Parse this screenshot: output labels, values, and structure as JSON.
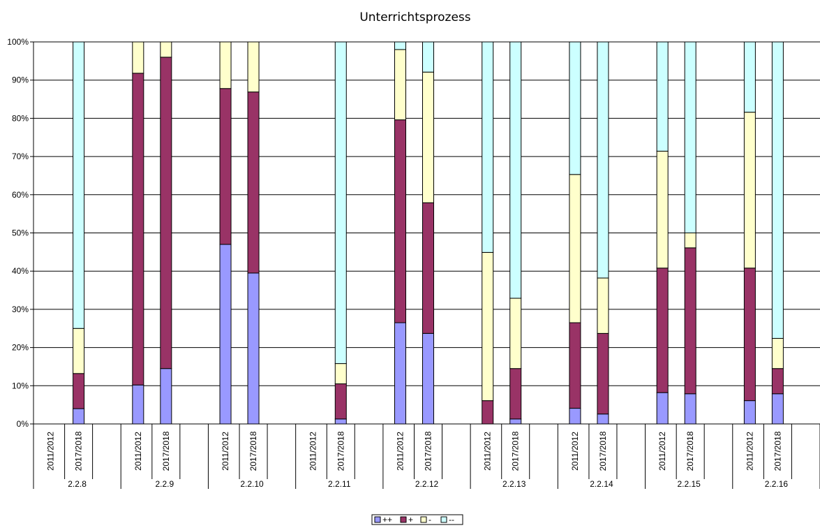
{
  "chart_data": {
    "type": "bar",
    "stacked": true,
    "percent_stacked": true,
    "title": "Unterrichtsprozess",
    "ylim": [
      0,
      100
    ],
    "ytick_labels": [
      "0%",
      "10%",
      "20%",
      "30%",
      "40%",
      "50%",
      "60%",
      "70%",
      "80%",
      "90%",
      "100%"
    ],
    "grid": true,
    "legend_position": "bottom",
    "groups": [
      {
        "label": "2.2.8",
        "bars": [
          {
            "label": "2011/2012",
            "values": [
              0,
              0,
              0,
              0
            ]
          },
          {
            "label": "2017/2018",
            "values": [
              4,
              9.2,
              11.8,
              75
            ]
          }
        ]
      },
      {
        "label": "2.2.9",
        "bars": [
          {
            "label": "2011/2012",
            "values": [
              10.2,
              81.6,
              8.2,
              0
            ]
          },
          {
            "label": "2017/2018",
            "values": [
              14.5,
              81.5,
              4,
              0
            ]
          }
        ]
      },
      {
        "label": "2.2.10",
        "bars": [
          {
            "label": "2011/2012",
            "values": [
              47,
              40.8,
              12.2,
              0
            ]
          },
          {
            "label": "2017/2018",
            "values": [
              39.5,
              47.4,
              13.1,
              0
            ]
          }
        ]
      },
      {
        "label": "2.2.11",
        "bars": [
          {
            "label": "2011/2012",
            "values": [
              0,
              0,
              0,
              0
            ]
          },
          {
            "label": "2017/2018",
            "values": [
              1.3,
              9.2,
              5.3,
              84.2
            ]
          }
        ]
      },
      {
        "label": "2.2.12",
        "bars": [
          {
            "label": "2011/2012",
            "values": [
              26.5,
              53.1,
              18.4,
              2
            ]
          },
          {
            "label": "2017/2018",
            "values": [
              23.7,
              34.2,
              34.2,
              7.9
            ]
          }
        ]
      },
      {
        "label": "2.2.13",
        "bars": [
          {
            "label": "2011/2012",
            "values": [
              0,
              6.1,
              38.8,
              55.1
            ]
          },
          {
            "label": "2017/2018",
            "values": [
              1.3,
              13.2,
              18.4,
              67.1
            ]
          }
        ]
      },
      {
        "label": "2.2.14",
        "bars": [
          {
            "label": "2011/2012",
            "values": [
              4.1,
              22.4,
              38.8,
              34.7
            ]
          },
          {
            "label": "2017/2018",
            "values": [
              2.6,
              21.1,
              14.5,
              61.8
            ]
          }
        ]
      },
      {
        "label": "2.2.15",
        "bars": [
          {
            "label": "2011/2012",
            "values": [
              8.2,
              32.6,
              30.6,
              28.6
            ]
          },
          {
            "label": "2017/2018",
            "values": [
              7.9,
              38.2,
              3.9,
              50
            ]
          }
        ]
      },
      {
        "label": "2.2.16",
        "bars": [
          {
            "label": "2011/2012",
            "values": [
              6.1,
              34.7,
              40.8,
              18.4
            ]
          },
          {
            "label": "2017/2018",
            "values": [
              7.9,
              6.6,
              7.9,
              77.6
            ]
          }
        ]
      }
    ],
    "series": [
      {
        "name": "++",
        "color": "#9999ff"
      },
      {
        "name": "+",
        "color": "#993366"
      },
      {
        "name": "-",
        "color": "#ffffcc"
      },
      {
        "name": "--",
        "color": "#ccffff"
      }
    ]
  }
}
